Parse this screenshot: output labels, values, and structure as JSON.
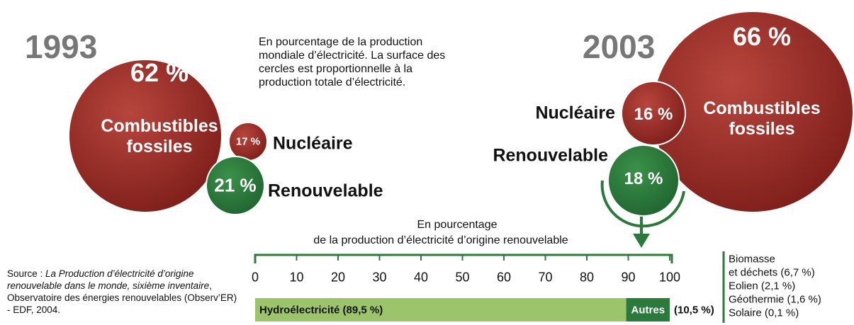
{
  "chart_data": [
    {
      "type": "bubble",
      "title": "1993",
      "note": "En pourcentage de la production mondiale d’électricité. La surface des cercles est proportionnelle à la production totale d’électricité.",
      "categories": [
        "Combustibles fossiles",
        "Nucléaire",
        "Renouvelable"
      ],
      "values": [
        62,
        17,
        21
      ],
      "value_labels": [
        "62 %",
        "17 %",
        "21 %"
      ],
      "colors": [
        "#9a2b25",
        "#9a2b25",
        "#2b7a3b"
      ]
    },
    {
      "type": "bubble",
      "title": "2003",
      "categories": [
        "Combustibles fossiles",
        "Nucléaire",
        "Renouvelable"
      ],
      "values": [
        66,
        16,
        18
      ],
      "value_labels": [
        "66 %",
        "16 %",
        "18 %"
      ],
      "colors": [
        "#9a2b25",
        "#9a2b25",
        "#2b7a3b"
      ]
    },
    {
      "type": "stacked-bar",
      "title": "En pourcentage",
      "subtitle": "de la production d’électricité d’origine renouvelable",
      "xlim": [
        0,
        100
      ],
      "xticks": [
        0,
        10,
        20,
        30,
        40,
        50,
        60,
        70,
        80,
        90,
        100
      ],
      "series": [
        {
          "name": "Hydroélectricité",
          "color": "#9cc46a",
          "values": [
            89.5
          ],
          "value_labels": [
            "Hydroélectricité (89,5 %)"
          ]
        },
        {
          "name": "Autres",
          "color": "#2b7a3b",
          "values": [
            10.5
          ],
          "value_labels": [
            "(10,5 %)"
          ]
        }
      ],
      "details": [
        "Biomasse",
        "et déchets (6,7 %)",
        "Eolien (2,1 %)",
        "Géothermie (1,6 %)",
        "Solaire (0,1 %)"
      ],
      "source": {
        "prefix": "Source : ",
        "title": "La Production d’électricité d’origine renouvelable dans le monde, sixième inventaire",
        "rest": ", Observatoire des énergies renouvelables (Observ’ER) - EDF, 2004."
      }
    }
  ]
}
